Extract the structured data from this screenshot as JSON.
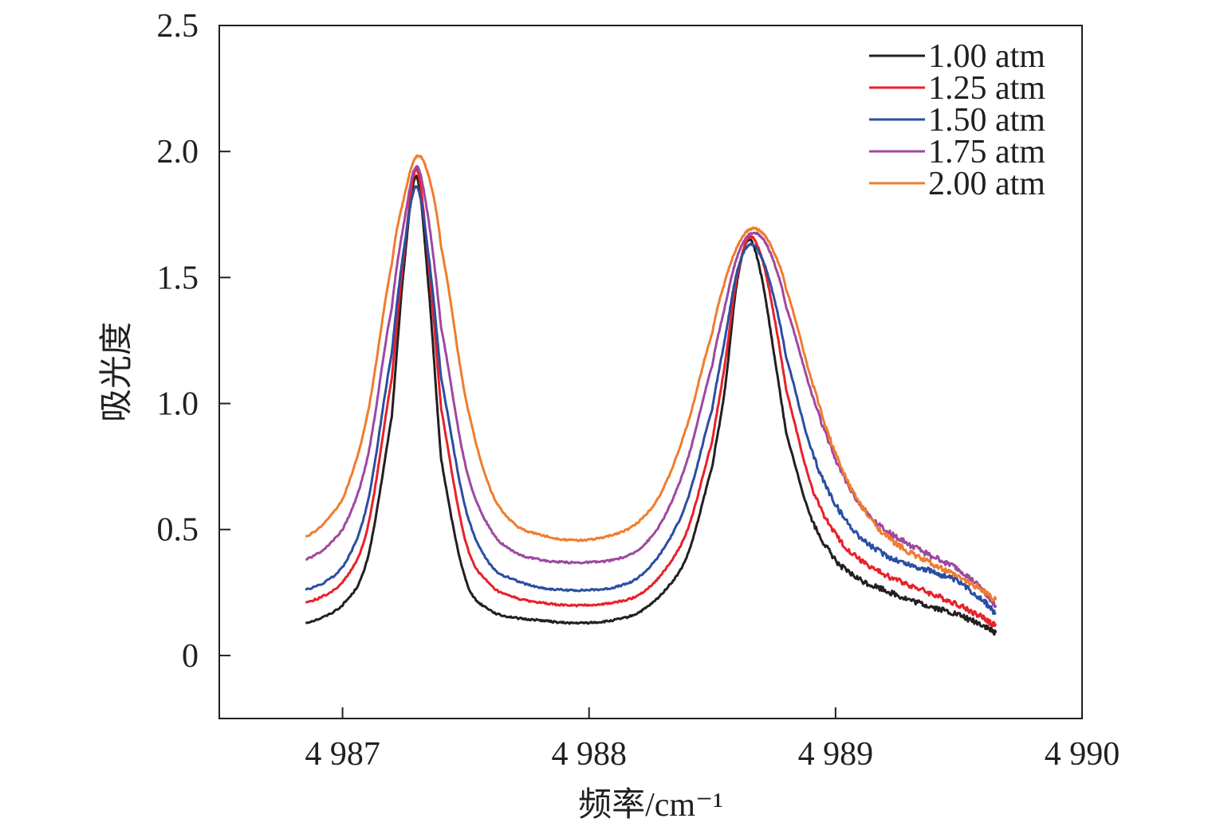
{
  "chart_data": {
    "type": "line",
    "title": "",
    "xlabel": "频率/cm⁻¹",
    "ylabel": "吸光度",
    "xlim": [
      4986.5,
      4990
    ],
    "ylim": [
      -0.25,
      2.5
    ],
    "x_ticks": [
      4987,
      4988,
      4989,
      4990
    ],
    "x_tick_labels": [
      "4 987",
      "4 988",
      "4 989",
      "4 990"
    ],
    "y_ticks": [
      0,
      0.5,
      1.0,
      1.5,
      2.0,
      2.5
    ],
    "y_tick_labels": [
      "0",
      "0.5",
      "1.0",
      "1.5",
      "2.0",
      "2.5"
    ],
    "grid": false,
    "legend_position": "top-right",
    "x": [
      4986.85,
      4987.0,
      4987.1,
      4987.2,
      4987.25,
      4987.3,
      4987.35,
      4987.4,
      4987.5,
      4987.6,
      4987.7,
      4987.8,
      4987.9,
      4988.0,
      4988.1,
      4988.2,
      4988.3,
      4988.4,
      4988.5,
      4988.55,
      4988.6,
      4988.65,
      4988.7,
      4988.75,
      4988.8,
      4988.9,
      4989.0,
      4989.1,
      4989.2,
      4989.3,
      4989.4,
      4989.5,
      4989.6,
      4989.65
    ],
    "series": [
      {
        "name": "1.00 atm",
        "color": "#231f20",
        "values": [
          0.13,
          0.2,
          0.38,
          0.95,
          1.55,
          1.9,
          1.45,
          0.78,
          0.3,
          0.18,
          0.15,
          0.14,
          0.13,
          0.13,
          0.14,
          0.17,
          0.25,
          0.4,
          0.75,
          1.05,
          1.48,
          1.65,
          1.5,
          1.2,
          0.88,
          0.55,
          0.38,
          0.3,
          0.26,
          0.22,
          0.19,
          0.16,
          0.12,
          0.09
        ]
      },
      {
        "name": "1.25 atm",
        "color": "#e8212a",
        "values": [
          0.21,
          0.29,
          0.5,
          1.1,
          1.6,
          1.93,
          1.55,
          0.98,
          0.45,
          0.28,
          0.23,
          0.21,
          0.2,
          0.2,
          0.21,
          0.24,
          0.33,
          0.5,
          0.85,
          1.15,
          1.5,
          1.66,
          1.58,
          1.35,
          1.05,
          0.68,
          0.48,
          0.38,
          0.32,
          0.28,
          0.24,
          0.2,
          0.15,
          0.12
        ]
      },
      {
        "name": "1.50 atm",
        "color": "#2b4ea2",
        "values": [
          0.26,
          0.35,
          0.6,
          1.2,
          1.62,
          1.86,
          1.58,
          1.1,
          0.58,
          0.36,
          0.3,
          0.27,
          0.26,
          0.26,
          0.27,
          0.31,
          0.42,
          0.62,
          0.98,
          1.25,
          1.52,
          1.63,
          1.58,
          1.42,
          1.18,
          0.82,
          0.6,
          0.47,
          0.4,
          0.36,
          0.33,
          0.29,
          0.22,
          0.17
        ]
      },
      {
        "name": "1.75 atm",
        "color": "#9e48a0",
        "values": [
          0.38,
          0.5,
          0.78,
          1.38,
          1.72,
          1.94,
          1.72,
          1.3,
          0.75,
          0.5,
          0.41,
          0.38,
          0.37,
          0.37,
          0.38,
          0.42,
          0.54,
          0.78,
          1.15,
          1.38,
          1.58,
          1.67,
          1.66,
          1.56,
          1.38,
          1.05,
          0.78,
          0.6,
          0.5,
          0.44,
          0.39,
          0.34,
          0.26,
          0.2
        ]
      },
      {
        "name": "2.00 atm",
        "color": "#f07c2e",
        "values": [
          0.47,
          0.62,
          0.95,
          1.55,
          1.82,
          1.98,
          1.9,
          1.62,
          1.02,
          0.66,
          0.52,
          0.48,
          0.46,
          0.46,
          0.48,
          0.53,
          0.66,
          0.92,
          1.28,
          1.48,
          1.62,
          1.69,
          1.68,
          1.6,
          1.45,
          1.1,
          0.8,
          0.6,
          0.48,
          0.41,
          0.36,
          0.31,
          0.26,
          0.22
        ]
      }
    ]
  }
}
